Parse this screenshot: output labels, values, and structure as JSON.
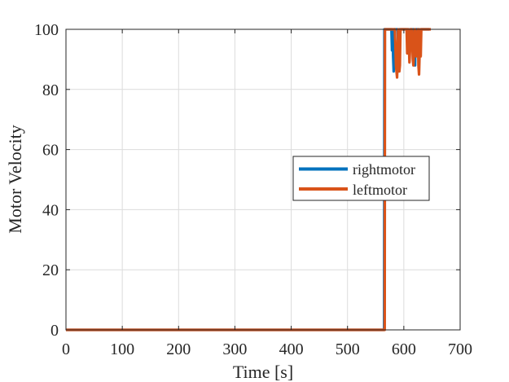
{
  "chart_data": {
    "type": "line",
    "title": "",
    "xlabel": "Time [s]",
    "ylabel": "Motor Velocity",
    "xlim": [
      0,
      700
    ],
    "ylim": [
      0,
      100
    ],
    "xticks": [
      0,
      100,
      200,
      300,
      400,
      500,
      600,
      700
    ],
    "yticks": [
      0,
      20,
      40,
      60,
      80,
      100
    ],
    "grid": true,
    "legend": {
      "placement": "right-center"
    },
    "series": [
      {
        "name": "rightmotor",
        "color": "#0072BD",
        "x": [
          0,
          565,
          565.5,
          578,
          579,
          580,
          581,
          582,
          583,
          585,
          589,
          590,
          591,
          592,
          593,
          595,
          608,
          609,
          610,
          611,
          612,
          614,
          618,
          619,
          620,
          621,
          623,
          627,
          628,
          630,
          631,
          645
        ],
        "y": [
          0,
          0,
          100,
          100,
          93,
          100,
          91,
          86,
          100,
          100,
          100,
          95,
          89,
          100,
          100,
          100,
          100,
          96,
          91,
          100,
          100,
          100,
          100,
          94,
          88,
          100,
          100,
          100,
          94,
          100,
          100,
          100
        ]
      },
      {
        "name": "leftmotor",
        "color": "#D95319",
        "x": [
          0,
          566,
          566.5,
          584,
          585,
          586,
          587,
          588,
          589,
          590,
          591,
          592,
          593,
          594,
          595,
          605,
          606,
          607,
          608,
          609,
          610,
          611,
          612,
          614,
          615,
          616,
          617,
          618,
          619,
          620,
          621,
          622,
          625,
          626,
          627,
          628,
          629,
          630,
          631,
          648
        ],
        "y": [
          0,
          0,
          100,
          100,
          95,
          88,
          86,
          84,
          90,
          100,
          94,
          86,
          88,
          100,
          100,
          100,
          92,
          100,
          100,
          95,
          89,
          93,
          100,
          100,
          96,
          90,
          88,
          92,
          100,
          100,
          95,
          91,
          100,
          88,
          85,
          92,
          100,
          91,
          100,
          100
        ]
      }
    ]
  }
}
